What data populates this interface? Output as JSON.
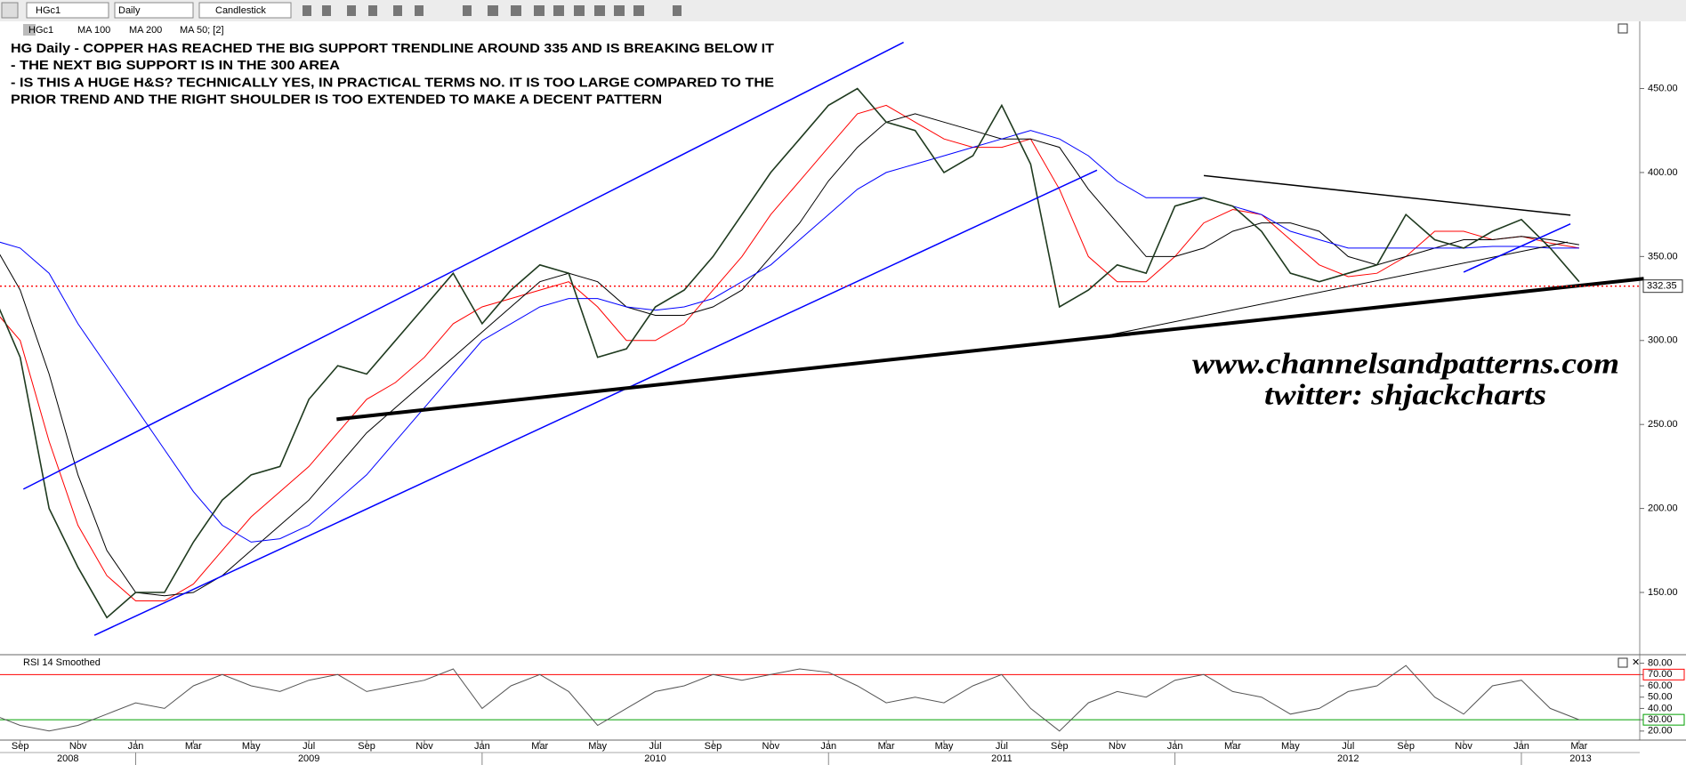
{
  "toolbar": {
    "symbol": "HGc1",
    "interval": "Daily",
    "chart_style": "Candlestick"
  },
  "chart_data": [
    {
      "type": "line",
      "x": [
        "2008-08",
        "2008-09",
        "2008-10",
        "2008-11",
        "2008-12",
        "2009-01",
        "2009-02",
        "2009-03",
        "2009-04",
        "2009-05",
        "2009-06",
        "2009-07",
        "2009-08",
        "2009-09",
        "2009-10",
        "2009-11",
        "2009-12",
        "2010-01",
        "2010-02",
        "2010-03",
        "2010-04",
        "2010-05",
        "2010-06",
        "2010-07",
        "2010-08",
        "2010-09",
        "2010-10",
        "2010-11",
        "2010-12",
        "2011-01",
        "2011-02",
        "2011-03",
        "2011-04",
        "2011-05",
        "2011-06",
        "2011-07",
        "2011-08",
        "2011-09",
        "2011-10",
        "2011-11",
        "2011-12",
        "2012-01",
        "2012-02",
        "2012-03",
        "2012-04",
        "2012-05",
        "2012-06",
        "2012-07",
        "2012-08",
        "2012-09",
        "2012-10",
        "2012-11",
        "2012-12",
        "2013-01",
        "2013-02",
        "2013-03"
      ],
      "series": [
        {
          "name": "HGc1",
          "color": "#1f3a1f",
          "values": [
            330,
            290,
            200,
            165,
            135,
            150,
            150,
            180,
            205,
            220,
            225,
            265,
            285,
            280,
            300,
            320,
            340,
            310,
            330,
            345,
            340,
            290,
            295,
            320,
            330,
            350,
            375,
            400,
            420,
            440,
            450,
            430,
            425,
            400,
            410,
            440,
            405,
            320,
            330,
            345,
            340,
            380,
            385,
            380,
            365,
            340,
            335,
            340,
            345,
            375,
            360,
            355,
            365,
            372,
            355,
            335
          ]
        },
        {
          "name": "MA 100",
          "color": "#000000",
          "values": [
            360,
            330,
            280,
            220,
            175,
            150,
            148,
            150,
            160,
            175,
            190,
            205,
            225,
            245,
            260,
            275,
            290,
            305,
            320,
            335,
            340,
            335,
            320,
            315,
            315,
            320,
            330,
            350,
            370,
            395,
            415,
            430,
            435,
            430,
            425,
            420,
            420,
            415,
            390,
            370,
            350,
            350,
            355,
            365,
            370,
            370,
            365,
            350,
            345,
            350,
            355,
            360,
            360,
            362,
            360,
            357
          ]
        },
        {
          "name": "MA 200",
          "color": "#0000ff",
          "values": [
            360,
            355,
            340,
            310,
            285,
            260,
            235,
            210,
            190,
            180,
            182,
            190,
            205,
            220,
            240,
            260,
            280,
            300,
            310,
            320,
            325,
            325,
            320,
            318,
            320,
            325,
            335,
            345,
            360,
            375,
            390,
            400,
            405,
            410,
            415,
            420,
            425,
            420,
            410,
            395,
            385,
            385,
            385,
            380,
            375,
            365,
            360,
            355,
            355,
            355,
            355,
            355,
            356,
            356,
            355,
            355
          ]
        },
        {
          "name": "MA 50; [2]",
          "color": "#ff0000",
          "values": [
            320,
            300,
            240,
            190,
            160,
            145,
            145,
            155,
            175,
            195,
            210,
            225,
            245,
            265,
            275,
            290,
            310,
            320,
            325,
            330,
            335,
            320,
            300,
            300,
            310,
            330,
            350,
            375,
            395,
            415,
            435,
            440,
            430,
            420,
            415,
            415,
            420,
            390,
            350,
            335,
            335,
            350,
            370,
            378,
            375,
            360,
            345,
            338,
            340,
            350,
            365,
            365,
            360,
            362,
            358,
            355
          ]
        }
      ],
      "xlim": [
        0.3,
        57.1
      ],
      "ylim": [
        114,
        490
      ],
      "yticks": [
        {
          "value": 150,
          "label": "150.00"
        },
        {
          "value": 200,
          "label": "200.00"
        },
        {
          "value": 250,
          "label": "250.00"
        },
        {
          "value": 300,
          "label": "300.00"
        },
        {
          "value": 350,
          "label": "350.00"
        },
        {
          "value": 400,
          "label": "400.00"
        },
        {
          "value": 450,
          "label": "450.00"
        }
      ],
      "xticks": [
        {
          "value": 1,
          "label": "Sep"
        },
        {
          "value": 3,
          "label": "Nov"
        },
        {
          "value": 5,
          "label": "Jan"
        },
        {
          "value": 7,
          "label": "Mar"
        },
        {
          "value": 9,
          "label": "May"
        },
        {
          "value": 11,
          "label": "Jul"
        },
        {
          "value": 13,
          "label": "Sep"
        },
        {
          "value": 15,
          "label": "Nov"
        },
        {
          "value": 17,
          "label": "Jan"
        },
        {
          "value": 19,
          "label": "Mar"
        },
        {
          "value": 21,
          "label": "May"
        },
        {
          "value": 23,
          "label": "Jul"
        },
        {
          "value": 25,
          "label": "Sep"
        },
        {
          "value": 27,
          "label": "Nov"
        },
        {
          "value": 29,
          "label": "Jan"
        },
        {
          "value": 31,
          "label": "Mar"
        },
        {
          "value": 33,
          "label": "May"
        },
        {
          "value": 35,
          "label": "Jul"
        },
        {
          "value": 37,
          "label": "Sep"
        },
        {
          "value": 39,
          "label": "Nov"
        },
        {
          "value": 41,
          "label": "Jan"
        },
        {
          "value": 43,
          "label": "Mar"
        },
        {
          "value": 45,
          "label": "May"
        },
        {
          "value": 47,
          "label": "Jul"
        },
        {
          "value": 49,
          "label": "Sep"
        },
        {
          "value": 51,
          "label": "Nov"
        },
        {
          "value": 53,
          "label": "Jan"
        },
        {
          "value": 55,
          "label": "Mar"
        }
      ],
      "year_ticks": [
        {
          "value": -3,
          "label": "2008"
        },
        {
          "value": 5,
          "label": "2009"
        },
        {
          "value": 17,
          "label": "2010"
        },
        {
          "value": 29,
          "label": "2011"
        },
        {
          "value": 41,
          "label": "2012"
        },
        {
          "value": 53,
          "label": "2013"
        }
      ],
      "last_price": {
        "value": 332.35,
        "label": "332.35",
        "color": "#ff0000"
      },
      "annotations": [
        "HG Daily - COPPER HAS REACHED THE BIG SUPPORT TRENDLINE AROUND 335 AND IS BREAKING BELOW IT",
        "- THE NEXT BIG SUPPORT IS IN THE 300 AREA",
        "- IS THIS A HUGE H&S? TECHNICALLY YES, IN PRACTICAL TERMS NO. IT IS TOO LARGE COMPARED TO THE",
        "PRIOR TREND AND THE RIGHT SHOULDER IS TOO EXTENDED TO MAKE A DECENT PATTERN"
      ],
      "watermark": [
        "www.channelsandpatterns.com",
        "twitter: shjackcharts"
      ],
      "trendlines": [
        {
          "x": [
            1.11,
            31.6
          ],
          "y": [
            211.5,
            477.5
          ],
          "color": "#0000ff",
          "width": 1.5
        },
        {
          "x": [
            3.57,
            38.3
          ],
          "y": [
            124.5,
            401.4
          ],
          "color": "#0000ff",
          "width": 1.5
        },
        {
          "x": [
            11.96,
            57.24
          ],
          "y": [
            253.1,
            336.8
          ],
          "color": "#000000",
          "width": 4
        },
        {
          "x": [
            37.9,
            54.6
          ],
          "y": [
            300.4,
            358.6
          ],
          "color": "#000000",
          "width": 1
        },
        {
          "x": [
            42.0,
            54.7
          ],
          "y": [
            398.2,
            374.6
          ],
          "color": "#000000",
          "width": 1.5
        },
        {
          "x": [
            51.0,
            54.7
          ],
          "y": [
            340.7,
            369.4
          ],
          "color": "#0000ff",
          "width": 1.5
        }
      ]
    },
    {
      "type": "line",
      "title": "RSI 14 Smoothed",
      "series": [
        {
          "color": "#555555",
          "values": [
            35,
            25,
            20,
            25,
            35,
            45,
            40,
            60,
            70,
            60,
            55,
            65,
            70,
            55,
            60,
            65,
            75,
            40,
            60,
            70,
            55,
            25,
            40,
            55,
            60,
            70,
            65,
            70,
            75,
            72,
            60,
            45,
            50,
            45,
            60,
            70,
            40,
            20,
            45,
            55,
            50,
            65,
            70,
            55,
            50,
            35,
            40,
            55,
            60,
            78,
            50,
            35,
            60,
            65,
            40,
            30
          ]
        }
      ],
      "ylim": [
        12,
        86
      ],
      "yticks": [
        {
          "value": 20,
          "label": "20.00"
        },
        {
          "value": 30,
          "label": "30.00"
        },
        {
          "value": 40,
          "label": "40.00"
        },
        {
          "value": 50,
          "label": "50.00"
        },
        {
          "value": 60,
          "label": "60.00"
        },
        {
          "value": 70,
          "label": "70.00"
        },
        {
          "value": 80,
          "label": "80.00"
        }
      ],
      "hlines": [
        {
          "value": 70,
          "color": "#ff0000"
        },
        {
          "value": 30,
          "color": "#00a000"
        }
      ]
    }
  ]
}
